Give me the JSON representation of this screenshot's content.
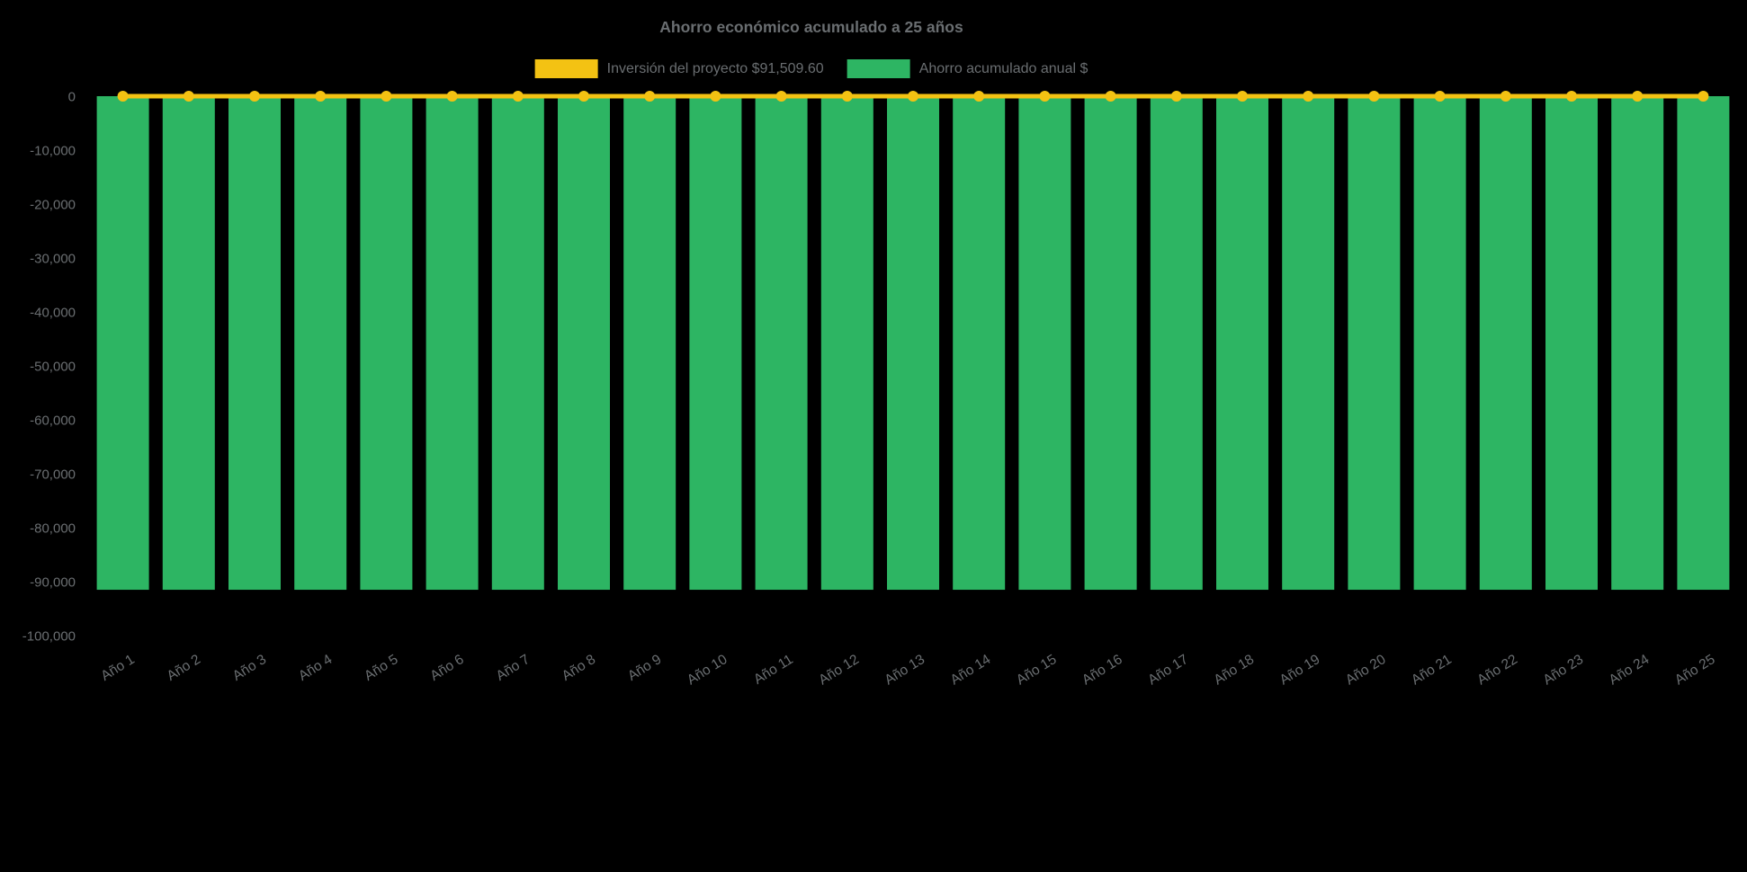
{
  "chart_data": {
    "type": "bar",
    "title": "Ahorro económico acumulado a 25 años",
    "background": "#000000",
    "text_color": "#6a6e71",
    "legend_position": "top",
    "grid": false,
    "xlabel": "",
    "ylabel": "",
    "ylim": [
      -100000,
      0
    ],
    "yticks": [
      {
        "value": 0,
        "label": "0"
      },
      {
        "value": -10000,
        "label": "-10,000"
      },
      {
        "value": -20000,
        "label": "-20,000"
      },
      {
        "value": -30000,
        "label": "-30,000"
      },
      {
        "value": -40000,
        "label": "-40,000"
      },
      {
        "value": -50000,
        "label": "-50,000"
      },
      {
        "value": -60000,
        "label": "-60,000"
      },
      {
        "value": -70000,
        "label": "-70,000"
      },
      {
        "value": -80000,
        "label": "-80,000"
      },
      {
        "value": -90000,
        "label": "-90,000"
      },
      {
        "value": -100000,
        "label": "-100,000"
      }
    ],
    "categories": [
      "Año 1",
      "Año 2",
      "Año 3",
      "Año 4",
      "Año 5",
      "Año 6",
      "Año 7",
      "Año 8",
      "Año 9",
      "Año 10",
      "Año 11",
      "Año 12",
      "Año 13",
      "Año 14",
      "Año 15",
      "Año 16",
      "Año 17",
      "Año 18",
      "Año 19",
      "Año 20",
      "Año 21",
      "Año 22",
      "Año 23",
      "Año 24",
      "Año 25"
    ],
    "series": [
      {
        "name": "Inversión del proyecto $91,509.60",
        "type": "line",
        "color": "#f3c213",
        "values": [
          0,
          0,
          0,
          0,
          0,
          0,
          0,
          0,
          0,
          0,
          0,
          0,
          0,
          0,
          0,
          0,
          0,
          0,
          0,
          0,
          0,
          0,
          0,
          0,
          0
        ]
      },
      {
        "name": "Ahorro acumulado anual $",
        "type": "bar",
        "color": "#2db563",
        "values": [
          -91509.6,
          -91509.6,
          -91509.6,
          -91509.6,
          -91509.6,
          -91509.6,
          -91509.6,
          -91509.6,
          -91509.6,
          -91509.6,
          -91509.6,
          -91509.6,
          -91509.6,
          -91509.6,
          -91509.6,
          -91509.6,
          -91509.6,
          -91509.6,
          -91509.6,
          -91509.6,
          -91509.6,
          -91509.6,
          -91509.6,
          -91509.6,
          -91509.6
        ]
      }
    ]
  }
}
